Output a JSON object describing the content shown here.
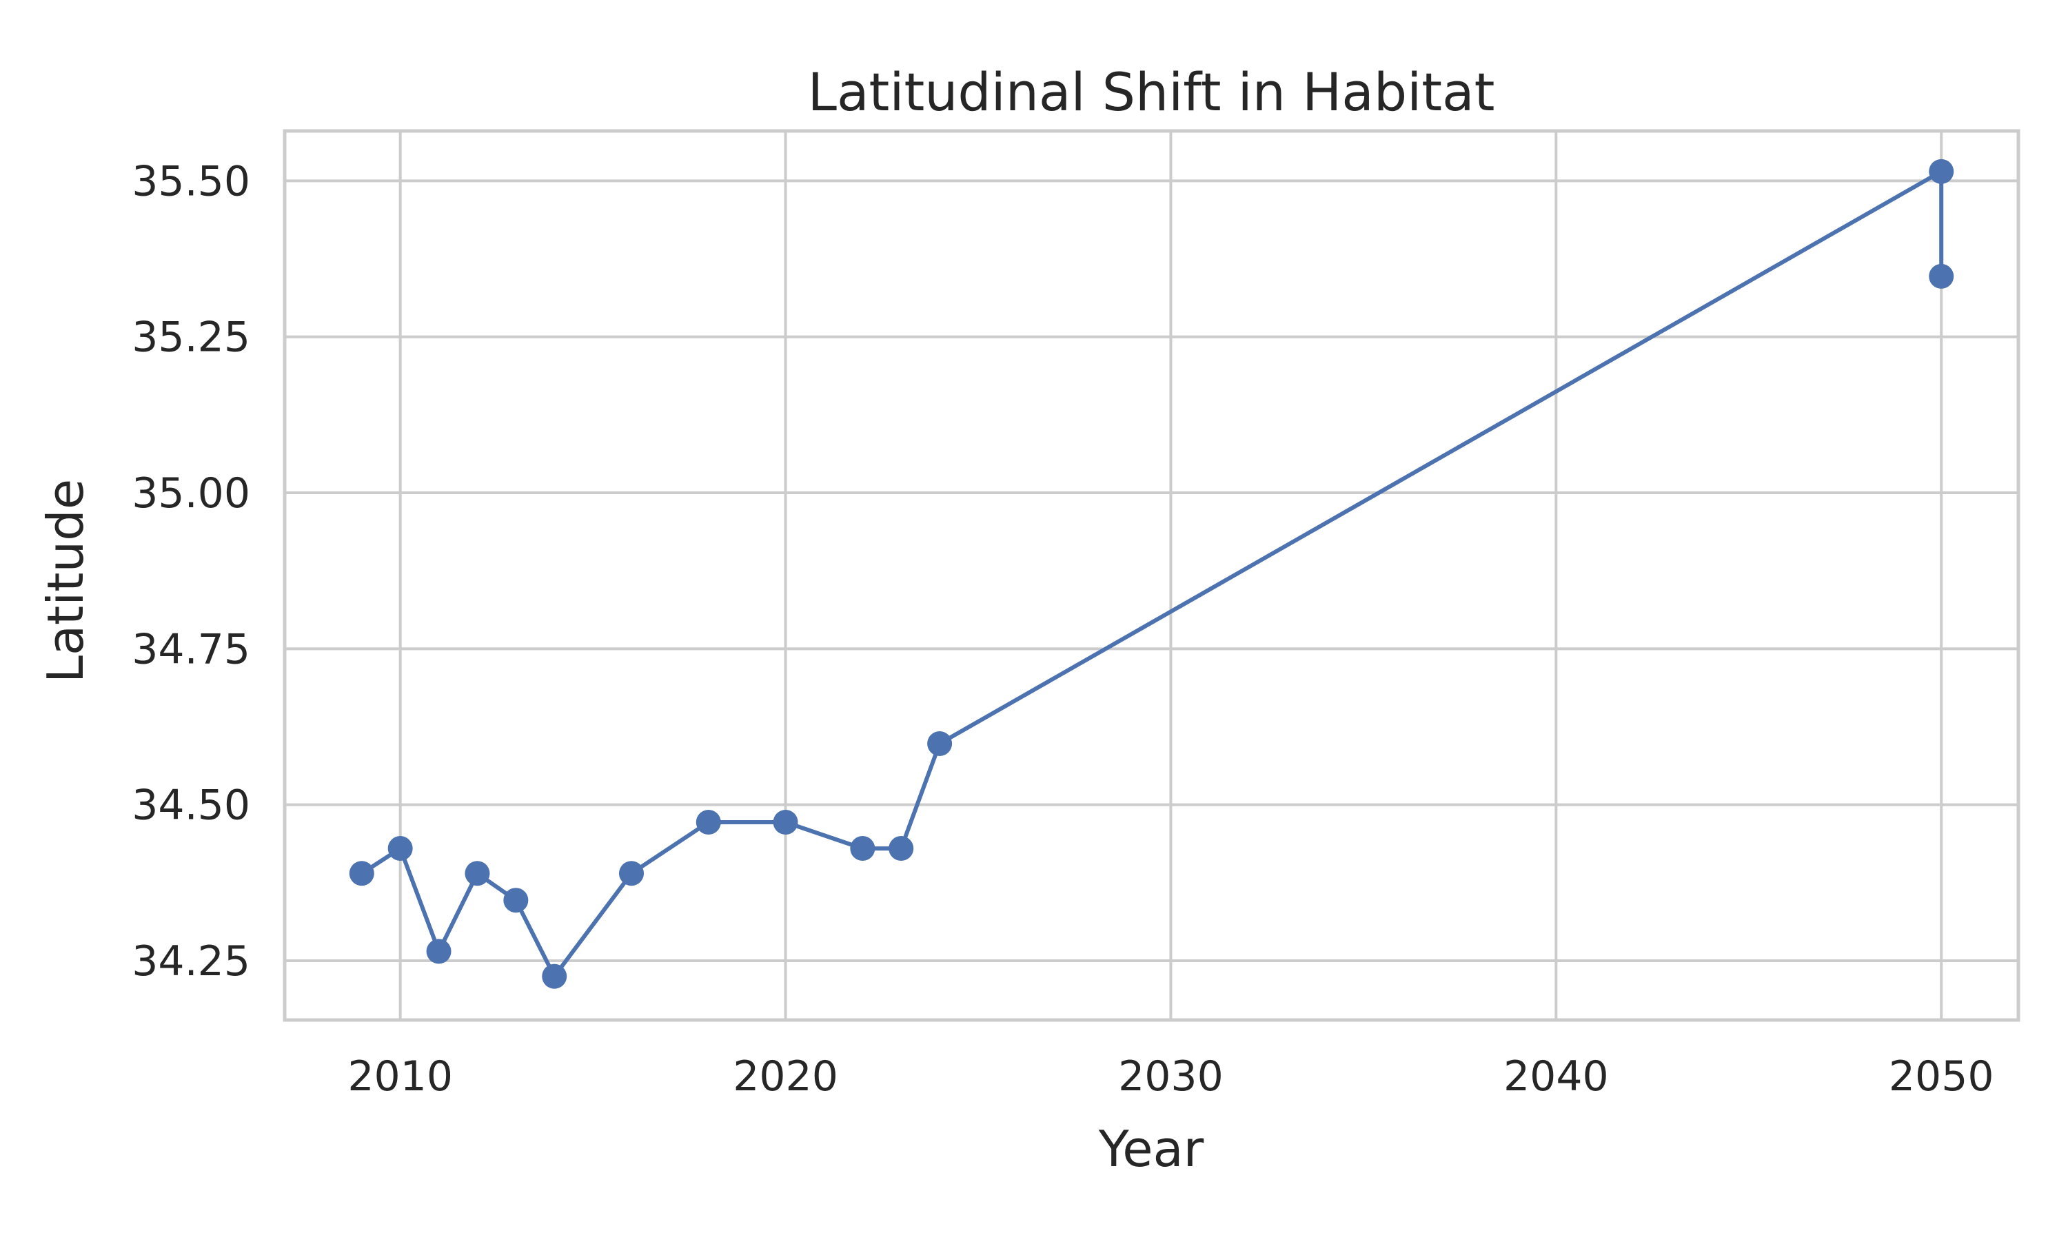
{
  "chart_data": {
    "type": "line",
    "title": "Latitudinal Shift in Habitat",
    "xlabel": "Year",
    "ylabel": "Latitude",
    "xlim": [
      2007,
      2052
    ],
    "ylim": [
      34.155,
      35.58
    ],
    "x_ticks": [
      2010,
      2020,
      2030,
      2040,
      2050
    ],
    "y_ticks": [
      34.25,
      34.5,
      34.75,
      35.0,
      35.25,
      35.5
    ],
    "grid": true,
    "legend": "none",
    "series": [
      {
        "color": "#4c72b0",
        "marker": "circle",
        "x": [
          2009,
          2010,
          2011,
          2012,
          2013,
          2014,
          2016,
          2018,
          2020,
          2022,
          2023,
          2024,
          2050,
          2050
        ],
        "y": [
          34.39,
          34.43,
          34.265,
          34.39,
          34.347,
          34.225,
          34.39,
          34.472,
          34.472,
          34.43,
          34.43,
          34.598,
          35.515,
          35.347
        ]
      }
    ]
  }
}
